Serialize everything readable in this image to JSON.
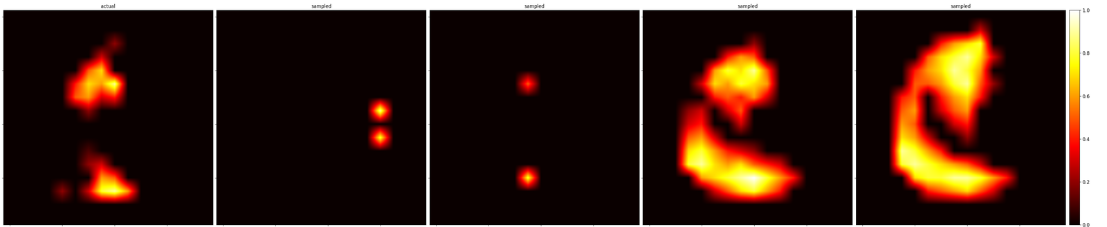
{
  "chart_data": [
    {
      "type": "heatmap",
      "title": "actual",
      "color": "hot",
      "tick_labels": false,
      "cells": [
        [
          0,
          0,
          0,
          0,
          0,
          0,
          0,
          0,
          0,
          0,
          0,
          0,
          0,
          0,
          0,
          0
        ],
        [
          0,
          0,
          0,
          0,
          0,
          0,
          0,
          0,
          0,
          0,
          0,
          0,
          0,
          0,
          0,
          0
        ],
        [
          0,
          0,
          0,
          0,
          0,
          0,
          0,
          0,
          0.2,
          0,
          0,
          0,
          0,
          0,
          0,
          0
        ],
        [
          0,
          0,
          0,
          0,
          0,
          0,
          0,
          0.3,
          0,
          0,
          0,
          0,
          0,
          0,
          0,
          0
        ],
        [
          0,
          0,
          0,
          0,
          0,
          0,
          0.5,
          0.7,
          0,
          0,
          0,
          0,
          0,
          0,
          0,
          0
        ],
        [
          0,
          0,
          0,
          0,
          0,
          0.4,
          0.7,
          0.6,
          0.9,
          0,
          0,
          0,
          0,
          0,
          0,
          0
        ],
        [
          0,
          0,
          0,
          0,
          0,
          0.5,
          0.6,
          0.3,
          0.4,
          0,
          0,
          0,
          0,
          0,
          0,
          0
        ],
        [
          0,
          0,
          0,
          0,
          0,
          0,
          0.2,
          0,
          0,
          0,
          0,
          0,
          0,
          0,
          0,
          0
        ],
        [
          0,
          0,
          0,
          0,
          0,
          0,
          0,
          0,
          0,
          0,
          0,
          0,
          0,
          0,
          0,
          0
        ],
        [
          0,
          0,
          0,
          0,
          0,
          0,
          0,
          0,
          0,
          0,
          0,
          0,
          0,
          0,
          0,
          0
        ],
        [
          0,
          0,
          0,
          0,
          0,
          0,
          0.1,
          0,
          0,
          0,
          0,
          0,
          0,
          0,
          0,
          0
        ],
        [
          0,
          0,
          0,
          0,
          0,
          0,
          0.2,
          0.3,
          0,
          0,
          0,
          0,
          0,
          0,
          0,
          0
        ],
        [
          0,
          0,
          0,
          0,
          0,
          0,
          0,
          0.6,
          0.5,
          0,
          0,
          0,
          0,
          0,
          0,
          0
        ],
        [
          0,
          0,
          0,
          0,
          0.2,
          0,
          0.3,
          0.8,
          0.9,
          0.6,
          0,
          0,
          0,
          0,
          0,
          0
        ],
        [
          0,
          0,
          0,
          0,
          0,
          0,
          0,
          0,
          0,
          0,
          0,
          0,
          0,
          0,
          0,
          0
        ],
        [
          0,
          0,
          0,
          0,
          0,
          0,
          0,
          0,
          0,
          0,
          0,
          0,
          0,
          0,
          0,
          0
        ]
      ]
    },
    {
      "type": "heatmap",
      "title": "sampled",
      "color": "hot",
      "tick_labels": false,
      "cells": [
        [
          0,
          0,
          0,
          0,
          0,
          0,
          0,
          0,
          0,
          0,
          0,
          0,
          0,
          0,
          0,
          0
        ],
        [
          0,
          0,
          0,
          0,
          0,
          0,
          0,
          0,
          0,
          0,
          0,
          0,
          0,
          0,
          0,
          0
        ],
        [
          0,
          0,
          0,
          0,
          0,
          0,
          0,
          0,
          0,
          0,
          0,
          0,
          0,
          0,
          0,
          0
        ],
        [
          0,
          0,
          0,
          0,
          0,
          0,
          0,
          0,
          0,
          0,
          0,
          0,
          0,
          0,
          0,
          0
        ],
        [
          0,
          0,
          0,
          0,
          0,
          0,
          0,
          0,
          0,
          0,
          0,
          0,
          0,
          0,
          0,
          0
        ],
        [
          0,
          0,
          0,
          0,
          0,
          0,
          0,
          0,
          0,
          0,
          0,
          0,
          0,
          0,
          0,
          0
        ],
        [
          0,
          0,
          0,
          0,
          0,
          0,
          0,
          0,
          0,
          0,
          0,
          0,
          0,
          0,
          0,
          0
        ],
        [
          0,
          0,
          0,
          0,
          0,
          0,
          0,
          0,
          0,
          0,
          0,
          0,
          0.9,
          0,
          0,
          0
        ],
        [
          0,
          0,
          0,
          0,
          0,
          0,
          0,
          0,
          0,
          0,
          0,
          0,
          0,
          0,
          0,
          0
        ],
        [
          0,
          0,
          0,
          0,
          0,
          0,
          0,
          0,
          0,
          0,
          0,
          0,
          0.8,
          0,
          0,
          0
        ],
        [
          0,
          0,
          0,
          0,
          0,
          0,
          0,
          0,
          0,
          0,
          0,
          0,
          0,
          0,
          0,
          0
        ],
        [
          0,
          0,
          0,
          0,
          0,
          0,
          0,
          0,
          0,
          0,
          0,
          0,
          0,
          0,
          0,
          0
        ],
        [
          0,
          0,
          0,
          0,
          0,
          0,
          0,
          0,
          0,
          0,
          0,
          0,
          0,
          0,
          0,
          0
        ],
        [
          0,
          0,
          0,
          0,
          0,
          0,
          0,
          0,
          0,
          0,
          0,
          0,
          0,
          0,
          0,
          0
        ],
        [
          0,
          0,
          0,
          0,
          0,
          0,
          0,
          0,
          0,
          0,
          0,
          0,
          0,
          0,
          0,
          0
        ],
        [
          0,
          0,
          0,
          0,
          0,
          0,
          0,
          0,
          0,
          0,
          0,
          0,
          0,
          0,
          0,
          0
        ]
      ]
    },
    {
      "type": "heatmap",
      "title": "sampled",
      "color": "hot",
      "tick_labels": false,
      "cells": [
        [
          0,
          0,
          0,
          0,
          0,
          0,
          0,
          0,
          0,
          0,
          0,
          0,
          0,
          0,
          0,
          0
        ],
        [
          0,
          0,
          0,
          0,
          0,
          0,
          0,
          0,
          0,
          0,
          0,
          0,
          0,
          0,
          0,
          0
        ],
        [
          0,
          0,
          0,
          0,
          0,
          0,
          0,
          0,
          0,
          0,
          0,
          0,
          0,
          0,
          0,
          0
        ],
        [
          0,
          0,
          0,
          0,
          0,
          0,
          0,
          0,
          0,
          0,
          0,
          0,
          0,
          0,
          0,
          0
        ],
        [
          0,
          0,
          0,
          0,
          0,
          0,
          0,
          0,
          0,
          0,
          0,
          0,
          0,
          0,
          0,
          0
        ],
        [
          0,
          0,
          0,
          0,
          0,
          0,
          0,
          0.5,
          0,
          0,
          0,
          0,
          0,
          0,
          0,
          0
        ],
        [
          0,
          0,
          0,
          0,
          0,
          0,
          0,
          0,
          0,
          0,
          0,
          0,
          0,
          0,
          0,
          0
        ],
        [
          0,
          0,
          0,
          0,
          0,
          0,
          0,
          0,
          0,
          0,
          0,
          0,
          0,
          0,
          0,
          0
        ],
        [
          0,
          0,
          0,
          0,
          0,
          0,
          0,
          0,
          0,
          0,
          0,
          0,
          0,
          0,
          0,
          0
        ],
        [
          0,
          0,
          0,
          0,
          0,
          0,
          0,
          0,
          0,
          0,
          0,
          0,
          0,
          0,
          0,
          0
        ],
        [
          0,
          0,
          0,
          0,
          0,
          0,
          0,
          0,
          0,
          0,
          0,
          0,
          0,
          0,
          0,
          0
        ],
        [
          0,
          0,
          0,
          0,
          0,
          0,
          0,
          0,
          0,
          0,
          0,
          0,
          0,
          0,
          0,
          0
        ],
        [
          0,
          0,
          0,
          0,
          0,
          0,
          0,
          0.8,
          0,
          0,
          0,
          0,
          0,
          0,
          0,
          0
        ],
        [
          0,
          0,
          0,
          0,
          0,
          0,
          0,
          0,
          0,
          0,
          0,
          0,
          0,
          0,
          0,
          0
        ],
        [
          0,
          0,
          0,
          0,
          0,
          0,
          0,
          0,
          0,
          0,
          0,
          0,
          0,
          0,
          0,
          0
        ],
        [
          0,
          0,
          0,
          0,
          0,
          0,
          0,
          0,
          0,
          0,
          0,
          0,
          0,
          0,
          0,
          0
        ]
      ]
    },
    {
      "type": "heatmap",
      "title": "sampled",
      "color": "hot",
      "tick_labels": false,
      "cells": [
        [
          0,
          0,
          0,
          0,
          0,
          0,
          0,
          0,
          0,
          0,
          0,
          0,
          0,
          0,
          0,
          0
        ],
        [
          0,
          0,
          0,
          0,
          0,
          0,
          0,
          0,
          0,
          0,
          0,
          0,
          0,
          0,
          0,
          0
        ],
        [
          0,
          0,
          0,
          0,
          0,
          0,
          0,
          0,
          0.2,
          0,
          0,
          0,
          0,
          0,
          0,
          0
        ],
        [
          0,
          0,
          0,
          0,
          0,
          0,
          0.4,
          0.6,
          0.5,
          0,
          0,
          0,
          0,
          0,
          0,
          0
        ],
        [
          0,
          0,
          0,
          0,
          0,
          0.6,
          0.8,
          0.7,
          0.9,
          0.5,
          0,
          0,
          0,
          0,
          0,
          0
        ],
        [
          0,
          0,
          0,
          0,
          0.3,
          0.7,
          0.6,
          0.8,
          0.7,
          0.6,
          0,
          0,
          0,
          0,
          0,
          0
        ],
        [
          0,
          0,
          0,
          0,
          0,
          0.4,
          0.5,
          0.4,
          0.6,
          0.3,
          0,
          0,
          0,
          0,
          0,
          0
        ],
        [
          0,
          0,
          0,
          0.2,
          0.3,
          0,
          0.3,
          0.5,
          0,
          0,
          0,
          0,
          0,
          0,
          0,
          0
        ],
        [
          0,
          0,
          0,
          0.3,
          0.4,
          0,
          0,
          0.3,
          0,
          0,
          0,
          0,
          0,
          0,
          0,
          0
        ],
        [
          0,
          0,
          0,
          0.5,
          0.6,
          0.3,
          0,
          0,
          0,
          0,
          0,
          0,
          0,
          0,
          0,
          0
        ],
        [
          0,
          0,
          0,
          0.7,
          0.8,
          0.6,
          0.4,
          0.3,
          0.2,
          0,
          0,
          0,
          0,
          0,
          0,
          0
        ],
        [
          0,
          0,
          0,
          0.8,
          0.9,
          0.7,
          0.6,
          0.7,
          0.5,
          0.4,
          0.3,
          0,
          0,
          0,
          0,
          0
        ],
        [
          0,
          0,
          0,
          0,
          0.6,
          0.7,
          0.8,
          0.9,
          1.0,
          0.8,
          0.6,
          0.4,
          0,
          0,
          0,
          0
        ],
        [
          0,
          0,
          0,
          0,
          0,
          0.3,
          0.5,
          0.7,
          0.8,
          0.6,
          0.4,
          0,
          0,
          0,
          0,
          0
        ],
        [
          0,
          0,
          0,
          0,
          0,
          0,
          0,
          0,
          0,
          0,
          0,
          0,
          0,
          0,
          0,
          0
        ],
        [
          0,
          0,
          0,
          0,
          0,
          0,
          0,
          0,
          0,
          0,
          0,
          0,
          0,
          0,
          0,
          0
        ]
      ]
    },
    {
      "type": "heatmap",
      "title": "sampled",
      "color": "hot",
      "tick_labels": false,
      "colorbar_range": [
        0,
        1
      ],
      "colorbar_ticks": [
        {
          "value": 0,
          "label": "0.0"
        },
        {
          "value": 0.2,
          "label": "0.2"
        },
        {
          "value": 0.4,
          "label": "0.4"
        },
        {
          "value": 0.6,
          "label": "0.6"
        },
        {
          "value": 0.8,
          "label": "0.8"
        },
        {
          "value": 1,
          "label": "1.0"
        }
      ],
      "cells": [
        [
          0,
          0,
          0,
          0,
          0,
          0,
          0,
          0,
          0,
          0,
          0,
          0,
          0,
          0,
          0,
          0
        ],
        [
          0,
          0,
          0,
          0,
          0,
          0,
          0,
          0,
          0,
          0.3,
          0,
          0,
          0,
          0,
          0,
          0
        ],
        [
          0,
          0,
          0,
          0,
          0,
          0,
          0.4,
          0.6,
          0.7,
          0.8,
          0,
          0,
          0,
          0,
          0,
          0
        ],
        [
          0,
          0,
          0,
          0,
          0,
          0.5,
          0.7,
          0.8,
          0.9,
          0.7,
          0.3,
          0,
          0,
          0,
          0,
          0
        ],
        [
          0,
          0,
          0,
          0,
          0.4,
          0.6,
          0.7,
          0.9,
          0.8,
          0.6,
          0,
          0,
          0,
          0,
          0,
          0
        ],
        [
          0,
          0,
          0,
          0,
          0.5,
          0.5,
          0.6,
          0.8,
          0.9,
          0.5,
          0.2,
          0,
          0,
          0,
          0,
          0
        ],
        [
          0,
          0,
          0,
          0.4,
          0.5,
          0,
          0.4,
          0.6,
          0.7,
          0.4,
          0,
          0,
          0,
          0,
          0,
          0
        ],
        [
          0,
          0,
          0,
          0.5,
          0.6,
          0,
          0.3,
          0.5,
          0.6,
          0,
          0,
          0,
          0,
          0,
          0,
          0
        ],
        [
          0,
          0,
          0,
          0.6,
          0.5,
          0,
          0,
          0.3,
          0.4,
          0,
          0,
          0,
          0,
          0,
          0,
          0
        ],
        [
          0,
          0,
          0,
          0.7,
          0.6,
          0.3,
          0,
          0,
          0.2,
          0,
          0,
          0,
          0,
          0,
          0,
          0
        ],
        [
          0,
          0,
          0,
          0.9,
          0.8,
          0.6,
          0.4,
          0,
          0,
          0,
          0,
          0,
          0,
          0,
          0,
          0
        ],
        [
          0,
          0,
          0,
          0.8,
          0.9,
          0.8,
          0.7,
          0.6,
          0.5,
          0.3,
          0,
          0,
          0,
          0,
          0,
          0
        ],
        [
          0,
          0,
          0,
          0,
          0.7,
          0.8,
          0.8,
          0.9,
          0.9,
          0.8,
          0.6,
          0.4,
          0,
          0,
          0,
          0
        ],
        [
          0,
          0,
          0,
          0,
          0,
          0.4,
          0.5,
          0.6,
          0.7,
          0.5,
          0.3,
          0,
          0,
          0,
          0,
          0
        ],
        [
          0,
          0,
          0,
          0,
          0,
          0,
          0,
          0,
          0,
          0,
          0,
          0,
          0,
          0,
          0,
          0
        ],
        [
          0,
          0,
          0,
          0,
          0,
          0,
          0,
          0,
          0,
          0,
          0,
          0,
          0,
          0,
          0,
          0
        ]
      ]
    }
  ]
}
